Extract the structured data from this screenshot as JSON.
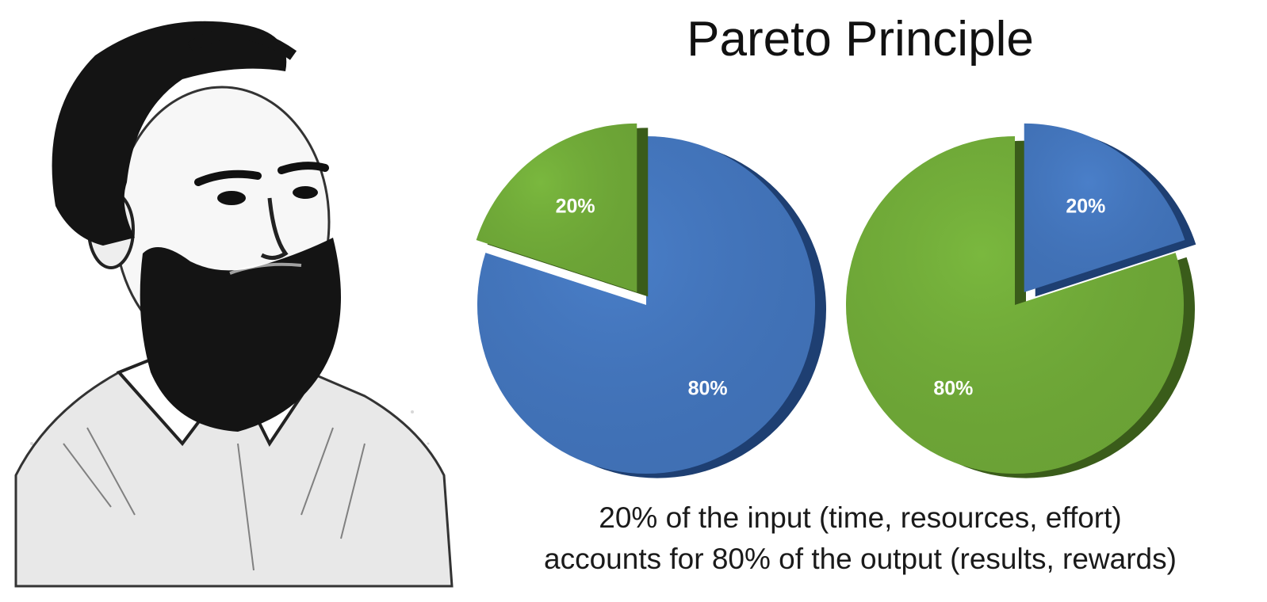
{
  "title": "Pareto Principle",
  "caption": {
    "line1": "20% of the input (time, resources, effort)",
    "line2": "accounts for 80% of the output (results, rewards)"
  },
  "portrait": {
    "icon": "bearded-man-portrait"
  },
  "colors": {
    "blue": "#4a7fc9",
    "blue_dark": "#1e3f72",
    "green": "#7ab83e",
    "green_dark": "#3a5c1a"
  },
  "chart_data": [
    {
      "type": "pie",
      "title": "",
      "slices": [
        {
          "label": "80%",
          "value": 80,
          "color": "blue",
          "exploded": false
        },
        {
          "label": "20%",
          "value": 20,
          "color": "green",
          "exploded": true
        }
      ]
    },
    {
      "type": "pie",
      "title": "",
      "slices": [
        {
          "label": "80%",
          "value": 80,
          "color": "green",
          "exploded": false
        },
        {
          "label": "20%",
          "value": 20,
          "color": "blue",
          "exploded": true
        }
      ]
    }
  ]
}
